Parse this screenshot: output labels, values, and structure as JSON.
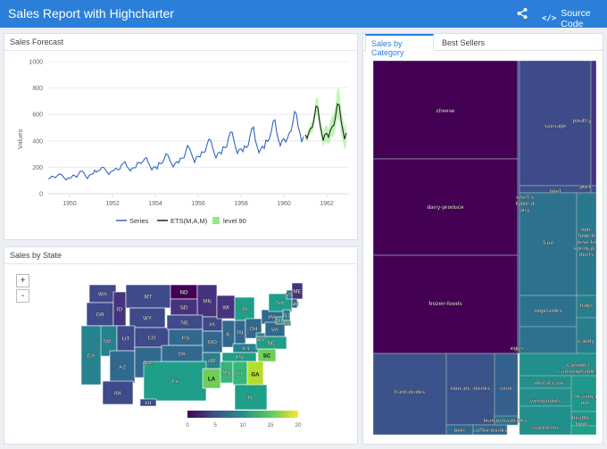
{
  "header": {
    "title": "Sales Report with Highcharter",
    "share_icon": "share-icon",
    "source_label": "Source Code",
    "source_icon_glyph": "</>"
  },
  "forecast_card": {
    "title": "Sales Forecast",
    "chart_data": {
      "type": "line",
      "ylabel": "Values",
      "ylim": [
        0,
        1000
      ],
      "y_ticks": [
        0,
        200,
        400,
        600,
        800,
        1000
      ],
      "xlim": [
        1949,
        1963
      ],
      "x_ticks": [
        1950,
        1952,
        1954,
        1956,
        1958,
        1960,
        1962
      ],
      "series": [
        {
          "name": "Series",
          "x_start": 1949,
          "step": 0.0833333,
          "values": [
            112,
            118,
            132,
            129,
            121,
            135,
            148,
            148,
            136,
            119,
            104,
            118,
            115,
            126,
            141,
            135,
            125,
            149,
            170,
            170,
            158,
            133,
            114,
            140,
            145,
            150,
            178,
            163,
            172,
            178,
            199,
            199,
            184,
            162,
            146,
            166,
            171,
            180,
            193,
            181,
            183,
            218,
            230,
            242,
            209,
            191,
            172,
            194,
            196,
            196,
            236,
            235,
            229,
            243,
            264,
            272,
            237,
            211,
            180,
            201,
            204,
            188,
            235,
            227,
            234,
            264,
            302,
            293,
            259,
            229,
            203,
            229,
            242,
            233,
            267,
            269,
            270,
            315,
            364,
            347,
            312,
            274,
            237,
            278,
            284,
            277,
            317,
            313,
            318,
            374,
            413,
            405,
            355,
            306,
            271,
            306,
            315,
            301,
            356,
            348,
            355,
            422,
            465,
            467,
            404,
            347,
            305,
            336,
            340,
            318,
            362,
            348,
            363,
            435,
            491,
            505,
            404,
            359,
            310,
            337,
            360,
            342,
            406,
            396,
            420,
            472,
            548,
            559,
            463,
            407,
            362,
            405,
            417,
            391,
            419,
            461,
            472,
            535,
            622,
            606,
            508,
            461,
            390,
            432
          ]
        },
        {
          "name": "ETS(M,A,M)",
          "x_start": 1961,
          "step": 0.0833333,
          "values": [
            445,
            418,
            465,
            494,
            505,
            573,
            663,
            654,
            546,
            474,
            403,
            449,
            457,
            428,
            477,
            506,
            518,
            587,
            680,
            670,
            560,
            486,
            413,
            460
          ]
        },
        {
          "name": "level 90",
          "x_start": 1961,
          "step": 0.0833333,
          "lower": [
            420,
            392,
            432,
            455,
            462,
            522,
            600,
            588,
            488,
            420,
            355,
            392,
            395,
            368,
            408,
            430,
            438,
            492,
            566,
            553,
            458,
            395,
            333,
            368
          ],
          "upper": [
            470,
            445,
            498,
            535,
            550,
            625,
            728,
            722,
            606,
            530,
            452,
            508,
            520,
            490,
            548,
            585,
            602,
            685,
            796,
            790,
            664,
            580,
            495,
            555
          ]
        }
      ],
      "colors": {
        "Series": "#2f66c2",
        "ETS(M,A,M)": "#222222",
        "level 90": "#90ed7d"
      }
    }
  },
  "state_card": {
    "title": "Sales by State",
    "zoom_in": "+",
    "zoom_out": "-",
    "state_labels": [
      "WA",
      "OR",
      "ID",
      "MT",
      "ND",
      "MN",
      "SD",
      "WY",
      "NV",
      "UT",
      "CO",
      "NE",
      "IA",
      "WI",
      "MI",
      "IL",
      "IN",
      "OH",
      "PA",
      "NY",
      "ME",
      "VT",
      "NH",
      "CA",
      "AZ",
      "NM",
      "KS",
      "MO",
      "KY",
      "WV",
      "VA",
      "MD",
      "NJ",
      "DE",
      "OK",
      "AR",
      "TN",
      "NC",
      "SC",
      "TX",
      "LA",
      "MS",
      "AL",
      "GA",
      "FL",
      "AK",
      "HI"
    ],
    "legend_ticks": [
      "0",
      "5",
      "10",
      "15",
      "20"
    ],
    "legend_min": 0,
    "legend_max": 20
  },
  "category_card": {
    "tabs": [
      {
        "label": "Sales by Category"
      },
      {
        "label": "Best Sellers"
      }
    ],
    "treemap_labels": {
      "cheese": "cheese",
      "dairy_produce": "dairy-produce",
      "frozen_foods": "frozen-foods",
      "hard_drinks": "hard-drinks",
      "non_alc": "non-alc.-drinks",
      "wine": "wine",
      "beer": "beer",
      "coffee": "coffee drinks",
      "tea": "tea/cocoa-drinks",
      "shelf": "shelf-stable-dairy",
      "sausage": "sausage",
      "poultry": "poultry",
      "pork": "pork",
      "beef": "beef",
      "fruit": "fruit",
      "non_food": "non-food-house-keeping-products",
      "vegetables": "vegetables",
      "bags": "bags",
      "eggs": "eggs",
      "candy": "candy",
      "canned": "canned-fruit/vegetables",
      "dental": "dental-care",
      "vinegar": "vinegar/oils",
      "chewing": "chewing-gum",
      "health": "health-food",
      "sweetener": "sweetener"
    }
  }
}
